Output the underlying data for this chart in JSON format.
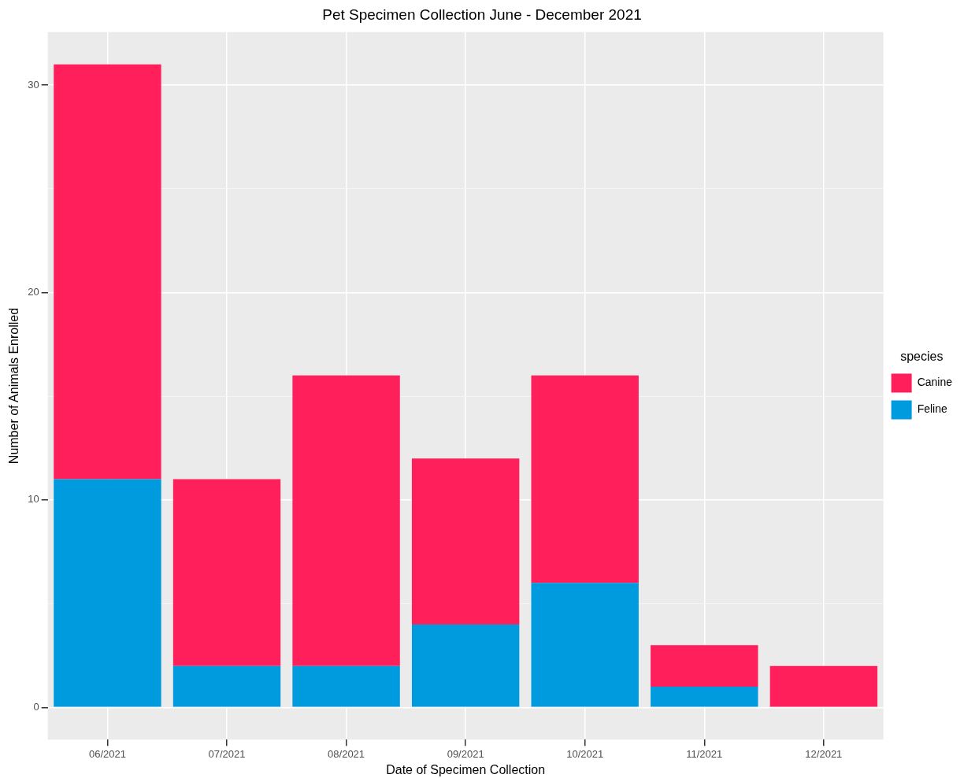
{
  "chart_data": {
    "type": "bar",
    "title": "Pet Specimen Collection June - December 2021",
    "xlabel": "Date of Specimen Collection",
    "ylabel": "Number of Animals Enrolled",
    "legend_title": "species",
    "categories": [
      "06/2021",
      "07/2021",
      "08/2021",
      "09/2021",
      "10/2021",
      "11/2021",
      "12/2021"
    ],
    "series": [
      {
        "name": "Feline",
        "color": "#009ade",
        "values": [
          11,
          2,
          2,
          4,
          6,
          1,
          0
        ]
      },
      {
        "name": "Canine",
        "color": "#ff1f5a",
        "values": [
          20,
          9,
          14,
          8,
          10,
          2,
          2
        ]
      }
    ],
    "stacked": true,
    "ylim": [
      -1.55,
      32.55
    ],
    "yticks": [
      0,
      {
        "value": 5,
        "label": null
      },
      10,
      {
        "value": 15,
        "label": null
      },
      20,
      {
        "value": 25,
        "label": null
      },
      30
    ],
    "grid": true,
    "legend": "right"
  }
}
